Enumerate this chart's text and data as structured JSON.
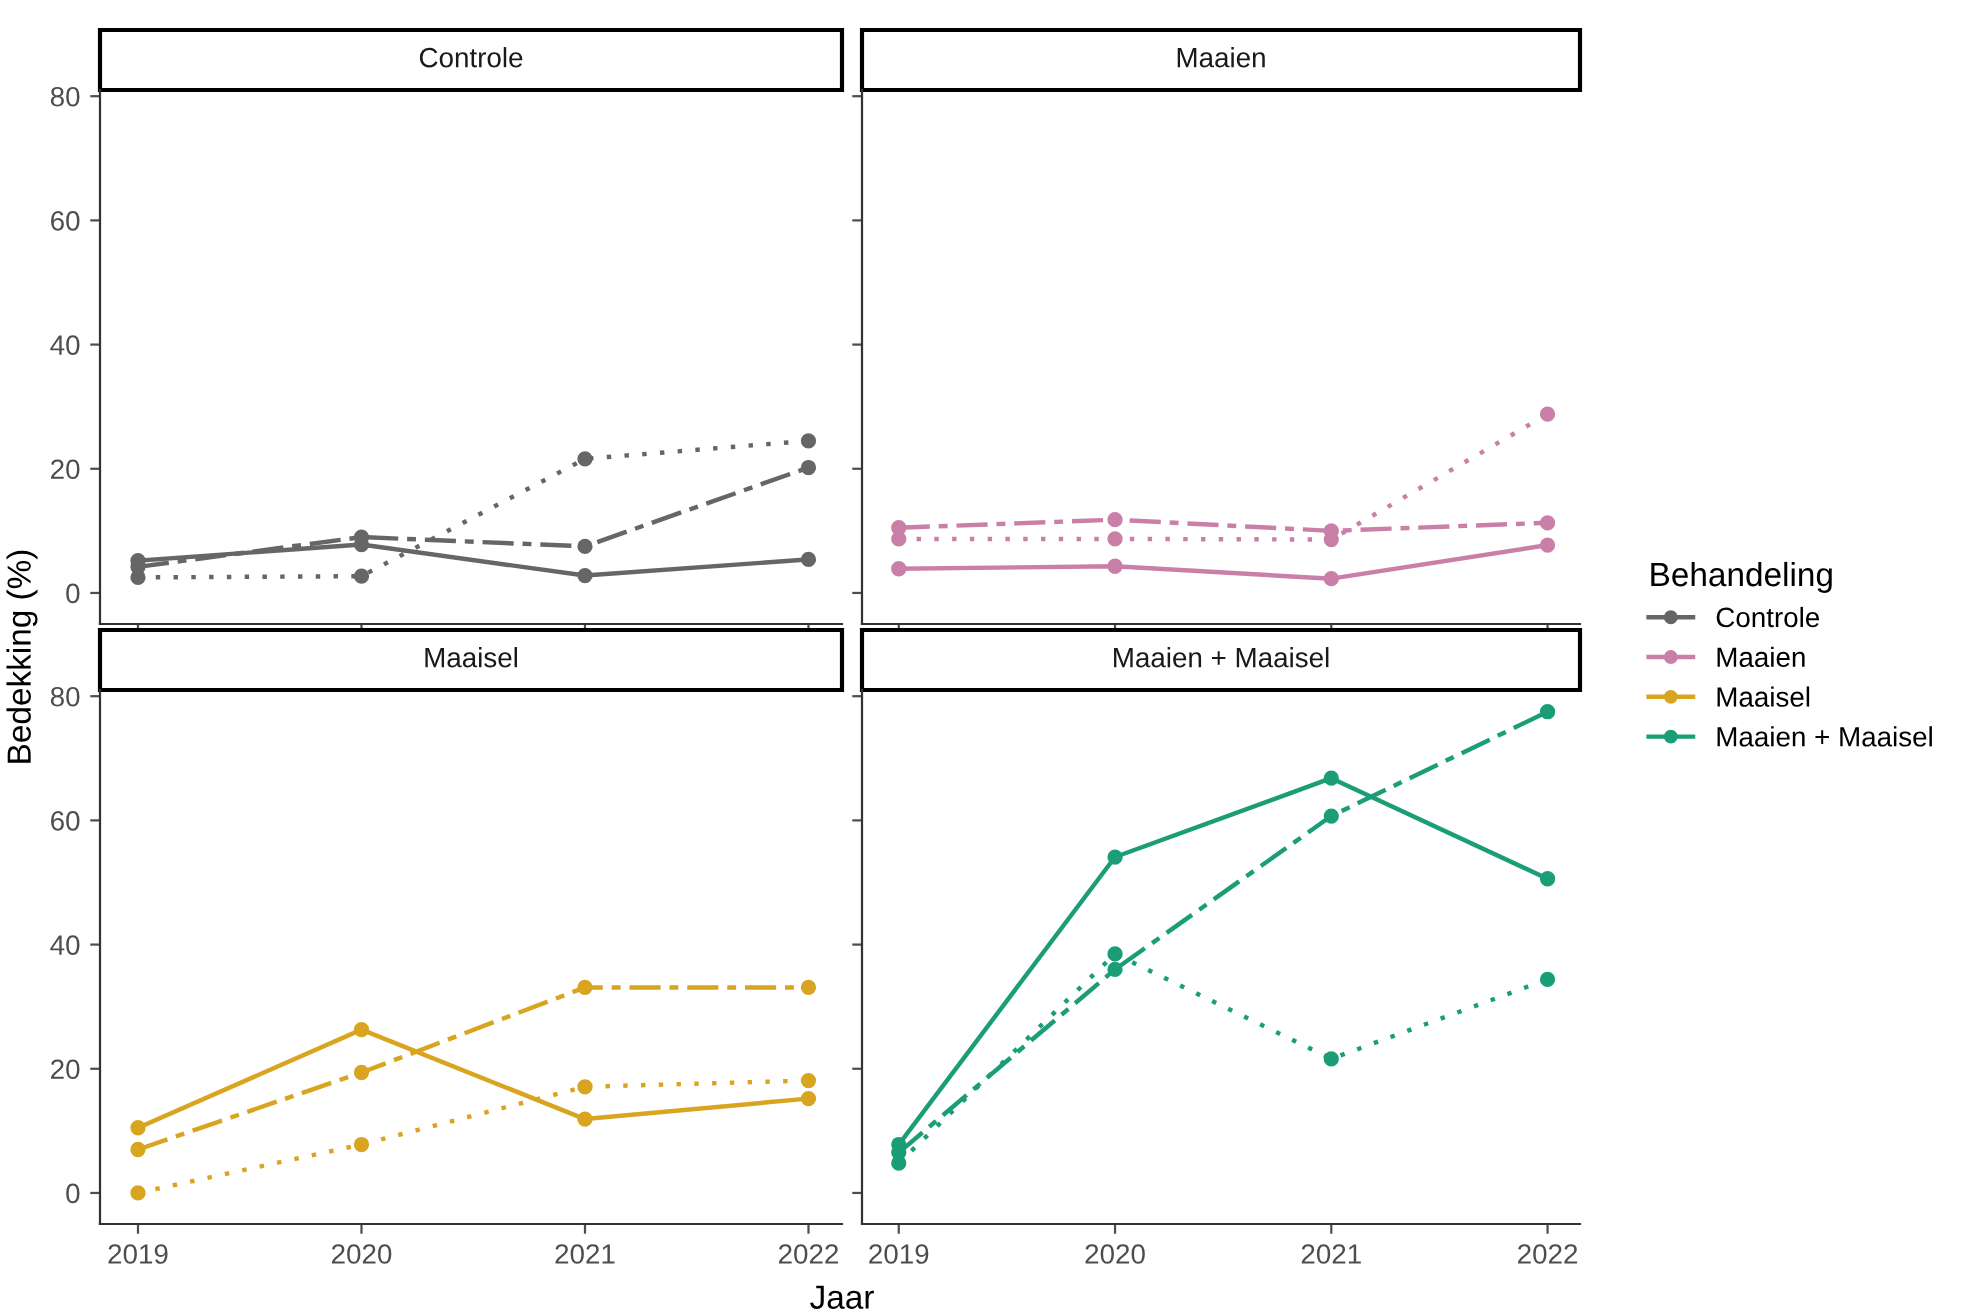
{
  "chart_data": [
    {
      "type": "line",
      "title": "Controle",
      "xlabel": "Jaar",
      "ylabel": "Bedekking (%)",
      "legend_title": "Behandeling",
      "legend": "right",
      "marker": "circle",
      "x": [
        2019,
        2020,
        2021,
        2022
      ],
      "xlim": [
        2018.83,
        2022.15
      ],
      "xticks": [
        2019,
        2020,
        2021,
        2022
      ],
      "ylim": [
        -5,
        81
      ],
      "yticks": [
        0,
        20,
        40,
        60,
        80
      ],
      "tick_labels": "y",
      "grid": false,
      "series": [
        {
          "name": "Controle",
          "color": "#666666",
          "line_style": "solid",
          "values": [
            5.2,
            7.8,
            2.8,
            5.4
          ]
        },
        {
          "color": "#666666",
          "line_style": "dashed",
          "values": [
            4.2,
            9.0,
            7.5,
            20.2
          ]
        },
        {
          "color": "#666666",
          "line_style": "dotted",
          "values": [
            2.5,
            2.7,
            21.6,
            24.5
          ]
        }
      ]
    },
    {
      "type": "line",
      "title": "Maaien",
      "legend": "right",
      "marker": "circle",
      "x": [
        2019,
        2020,
        2021,
        2022
      ],
      "xlim": [
        2018.83,
        2022.15
      ],
      "xticks": [
        2019,
        2020,
        2021,
        2022
      ],
      "ylim": [
        -5,
        81
      ],
      "yticks": [
        0,
        20,
        40,
        60,
        80
      ],
      "tick_labels": false,
      "grid": false,
      "series": [
        {
          "name": "Maaien",
          "color": "#c97fa8",
          "line_style": "solid",
          "values": [
            3.9,
            4.3,
            2.3,
            7.7
          ]
        },
        {
          "color": "#c97fa8",
          "line_style": "dashed",
          "values": [
            10.5,
            11.8,
            10.0,
            11.3
          ]
        },
        {
          "color": "#c97fa8",
          "line_style": "dotted",
          "values": [
            8.7,
            8.7,
            8.6,
            28.8
          ]
        }
      ]
    },
    {
      "type": "line",
      "title": "Maaisel",
      "legend": "right",
      "marker": "circle",
      "x": [
        2019,
        2020,
        2021,
        2022
      ],
      "xlim": [
        2018.83,
        2022.15
      ],
      "xticks": [
        2019,
        2020,
        2021,
        2022
      ],
      "ylim": [
        -5,
        81
      ],
      "yticks": [
        0,
        20,
        40,
        60,
        80
      ],
      "grid": false,
      "series": [
        {
          "name": "Maaisel",
          "color": "#d9a521",
          "line_style": "solid",
          "values": [
            10.5,
            26.3,
            11.9,
            15.2
          ]
        },
        {
          "color": "#d9a521",
          "line_style": "dashed",
          "values": [
            7.0,
            19.4,
            33.1,
            33.1
          ]
        },
        {
          "color": "#d9a521",
          "line_style": "dotted",
          "values": [
            0,
            7.8,
            17.1,
            18.1
          ]
        }
      ]
    },
    {
      "type": "line",
      "title": "Maaien + Maaisel",
      "legend": "right",
      "marker": "circle",
      "x": [
        2019,
        2020,
        2021,
        2022
      ],
      "xlim": [
        2018.83,
        2022.15
      ],
      "xticks": [
        2019,
        2020,
        2021,
        2022
      ],
      "ylim": [
        -5,
        81
      ],
      "yticks": [
        0,
        20,
        40,
        60,
        80
      ],
      "tick_labels": "x",
      "grid": false,
      "series": [
        {
          "name": "Maaien + Maaisel",
          "color": "#1b9e77",
          "line_style": "solid",
          "values": [
            7.8,
            54.1,
            66.8,
            50.6
          ]
        },
        {
          "color": "#1b9e77",
          "line_style": "dashed",
          "values": [
            6.5,
            36.0,
            60.7,
            77.5
          ]
        },
        {
          "color": "#1b9e77",
          "line_style": "dotted",
          "values": [
            4.8,
            38.5,
            21.6,
            34.4
          ]
        }
      ]
    }
  ]
}
